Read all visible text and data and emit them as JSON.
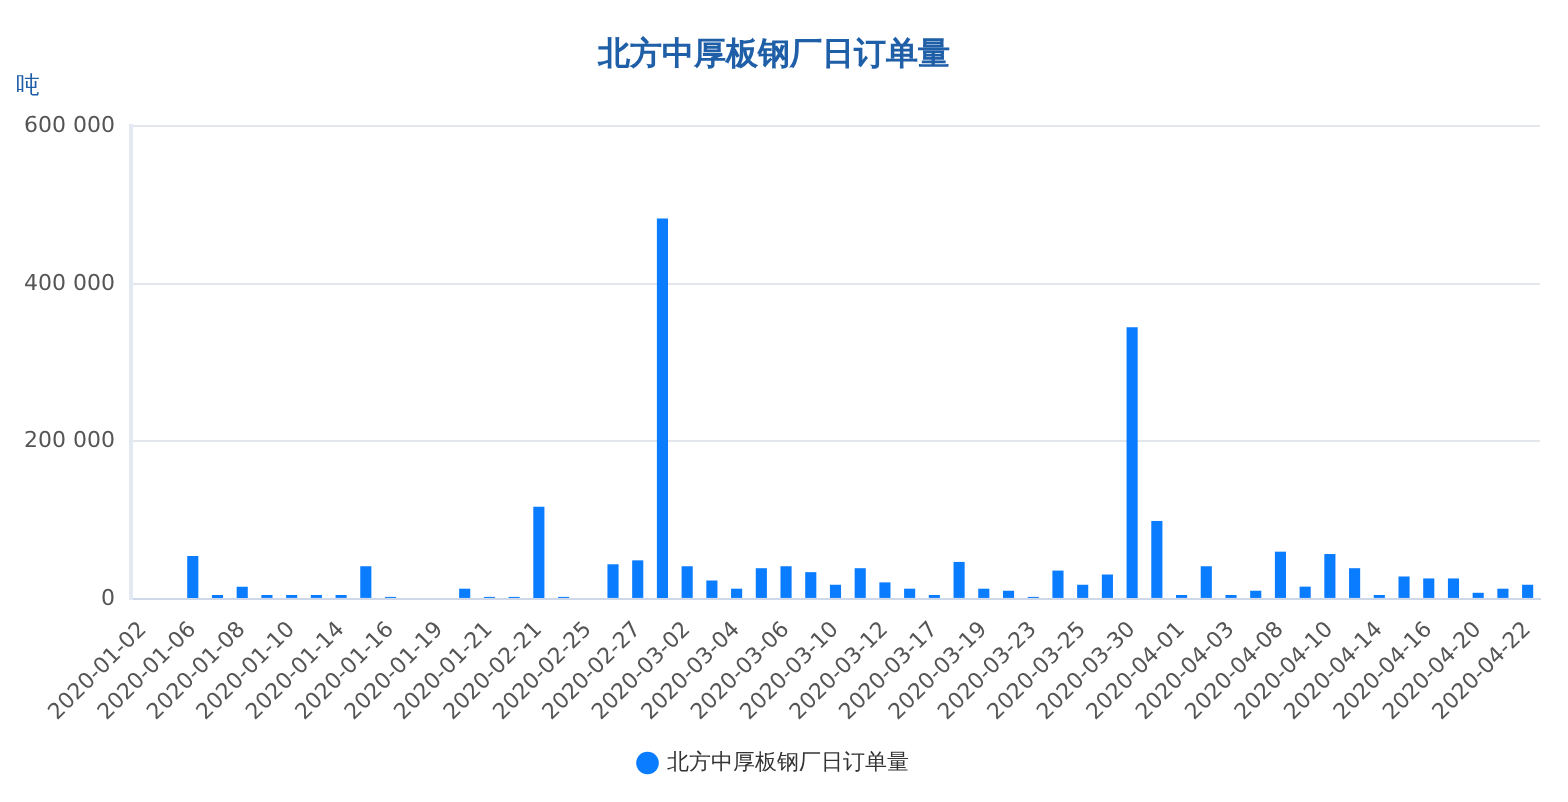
{
  "chart_data": {
    "type": "bar",
    "title": "北方中厚板钢厂日订单量",
    "ylabel": "吨",
    "categories": [
      "2020-01-02",
      null,
      "2020-01-06",
      null,
      "2020-01-08",
      null,
      "2020-01-10",
      null,
      "2020-01-14",
      null,
      "2020-01-16",
      null,
      "2020-01-19",
      null,
      "2020-01-21",
      null,
      "2020-02-21",
      null,
      "2020-02-25",
      null,
      "2020-02-27",
      null,
      "2020-03-02",
      null,
      "2020-03-04",
      null,
      "2020-03-06",
      null,
      "2020-03-10",
      null,
      "2020-03-12",
      null,
      "2020-03-17",
      null,
      "2020-03-19",
      null,
      "2020-03-23",
      null,
      "2020-03-25",
      null,
      "2020-03-30",
      null,
      "2020-04-01",
      null,
      "2020-04-03",
      null,
      "2020-04-08",
      null,
      "2020-04-10",
      null,
      "2020-04-14",
      null,
      "2020-04-16",
      null,
      "2020-04-20",
      null,
      "2020-04-22"
    ],
    "series": [
      {
        "name": "北方中厚板钢厂日订单量",
        "color": "#0a7cff",
        "values": [
          0,
          0,
          54500,
          5000,
          15600,
          5000,
          5000,
          5000,
          5000,
          41500,
          2600,
          0,
          0,
          13000,
          2600,
          2600,
          117000,
          2600,
          0,
          44000,
          49000,
          483000,
          41500,
          23400,
          13000,
          39000,
          41500,
          34000,
          18000,
          39000,
          21000,
          13000,
          5000,
          47000,
          13000,
          10400,
          2600,
          36000,
          18000,
          31000,
          345000,
          99000,
          5000,
          41500,
          5000,
          10400,
          60000,
          15600,
          57000,
          39000,
          5000,
          28500,
          26000,
          26000,
          7800,
          13000,
          18000
        ]
      }
    ],
    "ylim": [
      0,
      600000
    ],
    "yticks": [
      {
        "value": 0,
        "label": "0"
      },
      {
        "value": 200000,
        "label": "200 000"
      },
      {
        "value": 400000,
        "label": "400 000"
      },
      {
        "value": 600000,
        "label": "600 000"
      }
    ],
    "grid": "y",
    "legend": "bottom"
  }
}
